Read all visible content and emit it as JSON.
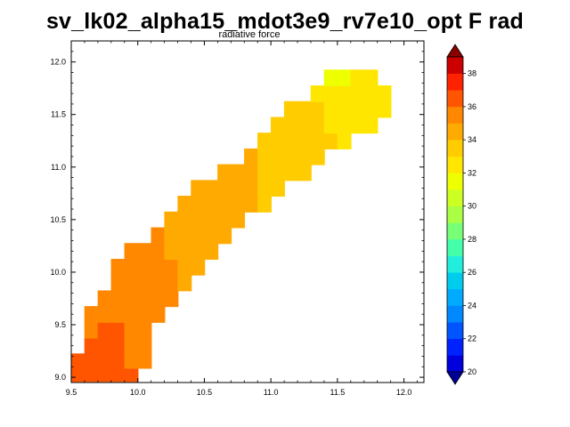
{
  "title": "sv_lk02_alpha15_mdot3e9_rv7e10_opt F rad",
  "subtitle": "radiative force",
  "chart_data": {
    "type": "heatmap",
    "title": "sv_lk02_alpha15_mdot3e9_rv7e10_opt F rad",
    "subtitle": "radiative force",
    "xlabel": "",
    "ylabel": "",
    "xlim": [
      9.5,
      12.15
    ],
    "ylim": [
      8.95,
      12.2
    ],
    "x_ticks": [
      {
        "value": 9.5,
        "label": "9.5"
      },
      {
        "value": 10.0,
        "label": "10.0"
      },
      {
        "value": 10.5,
        "label": "10.5"
      },
      {
        "value": 11.0,
        "label": "11.0"
      },
      {
        "value": 11.5,
        "label": "11.5"
      },
      {
        "value": 12.0,
        "label": "12.0"
      }
    ],
    "y_ticks": [
      {
        "value": 9.0,
        "label": "9.0"
      },
      {
        "value": 9.5,
        "label": "9.5"
      },
      {
        "value": 10.0,
        "label": "10.0"
      },
      {
        "value": 10.5,
        "label": "10.5"
      },
      {
        "value": 11.0,
        "label": "11.0"
      },
      {
        "value": 11.5,
        "label": "11.5"
      },
      {
        "value": 12.0,
        "label": "12.0"
      }
    ],
    "grid": false,
    "colorbar": {
      "min": 20,
      "max": 39,
      "step": 1,
      "tick_labels": [
        "20",
        "22",
        "24",
        "26",
        "28",
        "30",
        "32",
        "34",
        "36",
        "38"
      ],
      "colors": [
        "#000099",
        "#0000dd",
        "#0022ff",
        "#0055ff",
        "#0088ff",
        "#00aaff",
        "#00ccee",
        "#22eedd",
        "#44ffaa",
        "#77ff77",
        "#aaff44",
        "#ccff22",
        "#eeff00",
        "#ffe600",
        "#ffcc00",
        "#ffaa00",
        "#ff8800",
        "#ff5500",
        "#ff2200",
        "#cc0000",
        "#880000"
      ]
    },
    "data": {
      "x_centers": [
        9.55,
        9.65,
        9.75,
        9.85,
        9.95,
        10.05,
        10.15,
        10.25,
        10.35,
        10.45,
        10.55,
        10.65,
        10.75,
        10.85,
        10.95,
        11.05,
        11.15,
        11.25,
        11.35,
        11.45,
        11.55,
        11.65,
        11.75,
        11.85
      ],
      "y_centers": [
        9.025,
        9.15,
        9.3,
        9.45,
        9.6,
        9.75,
        9.9,
        10.05,
        10.2,
        10.35,
        10.5,
        10.65,
        10.8,
        10.95,
        11.1,
        11.25,
        11.4,
        11.55,
        11.7,
        11.85
      ],
      "rows": [
        {
          "y": 9.025,
          "cells": [
            {
              "x": 9.55,
              "v": 36
            },
            {
              "x": 9.65,
              "v": 36
            },
            {
              "x": 9.75,
              "v": 36
            },
            {
              "x": 9.85,
              "v": 36
            },
            {
              "x": 9.95,
              "v": 36
            }
          ]
        },
        {
          "y": 9.15,
          "cells": [
            {
              "x": 9.55,
              "v": 36
            },
            {
              "x": 9.65,
              "v": 36
            },
            {
              "x": 9.75,
              "v": 36
            },
            {
              "x": 9.85,
              "v": 36
            },
            {
              "x": 9.95,
              "v": 35
            },
            {
              "x": 10.05,
              "v": 35
            }
          ]
        },
        {
          "y": 9.3,
          "cells": [
            {
              "x": 9.65,
              "v": 36
            },
            {
              "x": 9.75,
              "v": 36
            },
            {
              "x": 9.85,
              "v": 36
            },
            {
              "x": 9.95,
              "v": 35
            },
            {
              "x": 10.05,
              "v": 35
            }
          ]
        },
        {
          "y": 9.45,
          "cells": [
            {
              "x": 9.65,
              "v": 35
            },
            {
              "x": 9.75,
              "v": 36
            },
            {
              "x": 9.85,
              "v": 36
            },
            {
              "x": 9.95,
              "v": 35
            },
            {
              "x": 10.05,
              "v": 35
            }
          ]
        },
        {
          "y": 9.6,
          "cells": [
            {
              "x": 9.65,
              "v": 35
            },
            {
              "x": 9.75,
              "v": 35
            },
            {
              "x": 9.85,
              "v": 35
            },
            {
              "x": 9.95,
              "v": 35
            },
            {
              "x": 10.05,
              "v": 35
            },
            {
              "x": 10.15,
              "v": 35
            }
          ]
        },
        {
          "y": 9.75,
          "cells": [
            {
              "x": 9.75,
              "v": 35
            },
            {
              "x": 9.85,
              "v": 35
            },
            {
              "x": 9.95,
              "v": 35
            },
            {
              "x": 10.05,
              "v": 35
            },
            {
              "x": 10.15,
              "v": 35
            },
            {
              "x": 10.25,
              "v": 35
            }
          ]
        },
        {
          "y": 9.9,
          "cells": [
            {
              "x": 9.85,
              "v": 35
            },
            {
              "x": 9.95,
              "v": 35
            },
            {
              "x": 10.05,
              "v": 35
            },
            {
              "x": 10.15,
              "v": 35
            },
            {
              "x": 10.25,
              "v": 35
            },
            {
              "x": 10.35,
              "v": 34
            }
          ]
        },
        {
          "y": 10.05,
          "cells": [
            {
              "x": 9.85,
              "v": 35
            },
            {
              "x": 9.95,
              "v": 35
            },
            {
              "x": 10.05,
              "v": 35
            },
            {
              "x": 10.15,
              "v": 35
            },
            {
              "x": 10.25,
              "v": 35
            },
            {
              "x": 10.35,
              "v": 34
            },
            {
              "x": 10.45,
              "v": 34
            }
          ]
        },
        {
          "y": 10.2,
          "cells": [
            {
              "x": 9.95,
              "v": 35
            },
            {
              "x": 10.05,
              "v": 35
            },
            {
              "x": 10.15,
              "v": 35
            },
            {
              "x": 10.25,
              "v": 34
            },
            {
              "x": 10.35,
              "v": 34
            },
            {
              "x": 10.45,
              "v": 34
            },
            {
              "x": 10.55,
              "v": 34
            }
          ]
        },
        {
          "y": 10.35,
          "cells": [
            {
              "x": 10.15,
              "v": 35
            },
            {
              "x": 10.25,
              "v": 34
            },
            {
              "x": 10.35,
              "v": 34
            },
            {
              "x": 10.45,
              "v": 34
            },
            {
              "x": 10.55,
              "v": 34
            },
            {
              "x": 10.65,
              "v": 34
            }
          ]
        },
        {
          "y": 10.5,
          "cells": [
            {
              "x": 10.25,
              "v": 34
            },
            {
              "x": 10.35,
              "v": 34
            },
            {
              "x": 10.45,
              "v": 34
            },
            {
              "x": 10.55,
              "v": 34
            },
            {
              "x": 10.65,
              "v": 34
            },
            {
              "x": 10.75,
              "v": 34
            }
          ]
        },
        {
          "y": 10.65,
          "cells": [
            {
              "x": 10.35,
              "v": 34
            },
            {
              "x": 10.45,
              "v": 34
            },
            {
              "x": 10.55,
              "v": 34
            },
            {
              "x": 10.65,
              "v": 34
            },
            {
              "x": 10.75,
              "v": 34
            },
            {
              "x": 10.85,
              "v": 34
            },
            {
              "x": 10.95,
              "v": 33
            }
          ]
        },
        {
          "y": 10.8,
          "cells": [
            {
              "x": 10.45,
              "v": 34
            },
            {
              "x": 10.55,
              "v": 34
            },
            {
              "x": 10.65,
              "v": 34
            },
            {
              "x": 10.75,
              "v": 34
            },
            {
              "x": 10.85,
              "v": 34
            },
            {
              "x": 10.95,
              "v": 33
            },
            {
              "x": 11.05,
              "v": 33
            }
          ]
        },
        {
          "y": 10.95,
          "cells": [
            {
              "x": 10.65,
              "v": 34
            },
            {
              "x": 10.75,
              "v": 34
            },
            {
              "x": 10.85,
              "v": 34
            },
            {
              "x": 10.95,
              "v": 33
            },
            {
              "x": 11.05,
              "v": 33
            },
            {
              "x": 11.15,
              "v": 33
            },
            {
              "x": 11.25,
              "v": 33
            }
          ]
        },
        {
          "y": 11.1,
          "cells": [
            {
              "x": 10.85,
              "v": 34
            },
            {
              "x": 10.95,
              "v": 33
            },
            {
              "x": 11.05,
              "v": 33
            },
            {
              "x": 11.15,
              "v": 33
            },
            {
              "x": 11.25,
              "v": 33
            },
            {
              "x": 11.35,
              "v": 33
            }
          ]
        },
        {
          "y": 11.25,
          "cells": [
            {
              "x": 10.95,
              "v": 33
            },
            {
              "x": 11.05,
              "v": 33
            },
            {
              "x": 11.15,
              "v": 33
            },
            {
              "x": 11.25,
              "v": 33
            },
            {
              "x": 11.35,
              "v": 33
            },
            {
              "x": 11.45,
              "v": 33
            },
            {
              "x": 11.55,
              "v": 32
            }
          ]
        },
        {
          "y": 11.4,
          "cells": [
            {
              "x": 11.05,
              "v": 33
            },
            {
              "x": 11.15,
              "v": 33
            },
            {
              "x": 11.25,
              "v": 33
            },
            {
              "x": 11.35,
              "v": 33
            },
            {
              "x": 11.45,
              "v": 32
            },
            {
              "x": 11.55,
              "v": 32
            },
            {
              "x": 11.65,
              "v": 32
            },
            {
              "x": 11.75,
              "v": 32
            }
          ]
        },
        {
          "y": 11.55,
          "cells": [
            {
              "x": 11.15,
              "v": 33
            },
            {
              "x": 11.25,
              "v": 33
            },
            {
              "x": 11.35,
              "v": 33
            },
            {
              "x": 11.45,
              "v": 32
            },
            {
              "x": 11.55,
              "v": 32
            },
            {
              "x": 11.65,
              "v": 32
            },
            {
              "x": 11.75,
              "v": 32
            },
            {
              "x": 11.85,
              "v": 32
            }
          ]
        },
        {
          "y": 11.7,
          "cells": [
            {
              "x": 11.35,
              "v": 32
            },
            {
              "x": 11.45,
              "v": 32
            },
            {
              "x": 11.55,
              "v": 32
            },
            {
              "x": 11.65,
              "v": 32
            },
            {
              "x": 11.75,
              "v": 32
            },
            {
              "x": 11.85,
              "v": 32
            }
          ]
        },
        {
          "y": 11.85,
          "cells": [
            {
              "x": 11.45,
              "v": 31
            },
            {
              "x": 11.55,
              "v": 31
            },
            {
              "x": 11.65,
              "v": 32
            },
            {
              "x": 11.75,
              "v": 32
            }
          ]
        }
      ]
    }
  }
}
